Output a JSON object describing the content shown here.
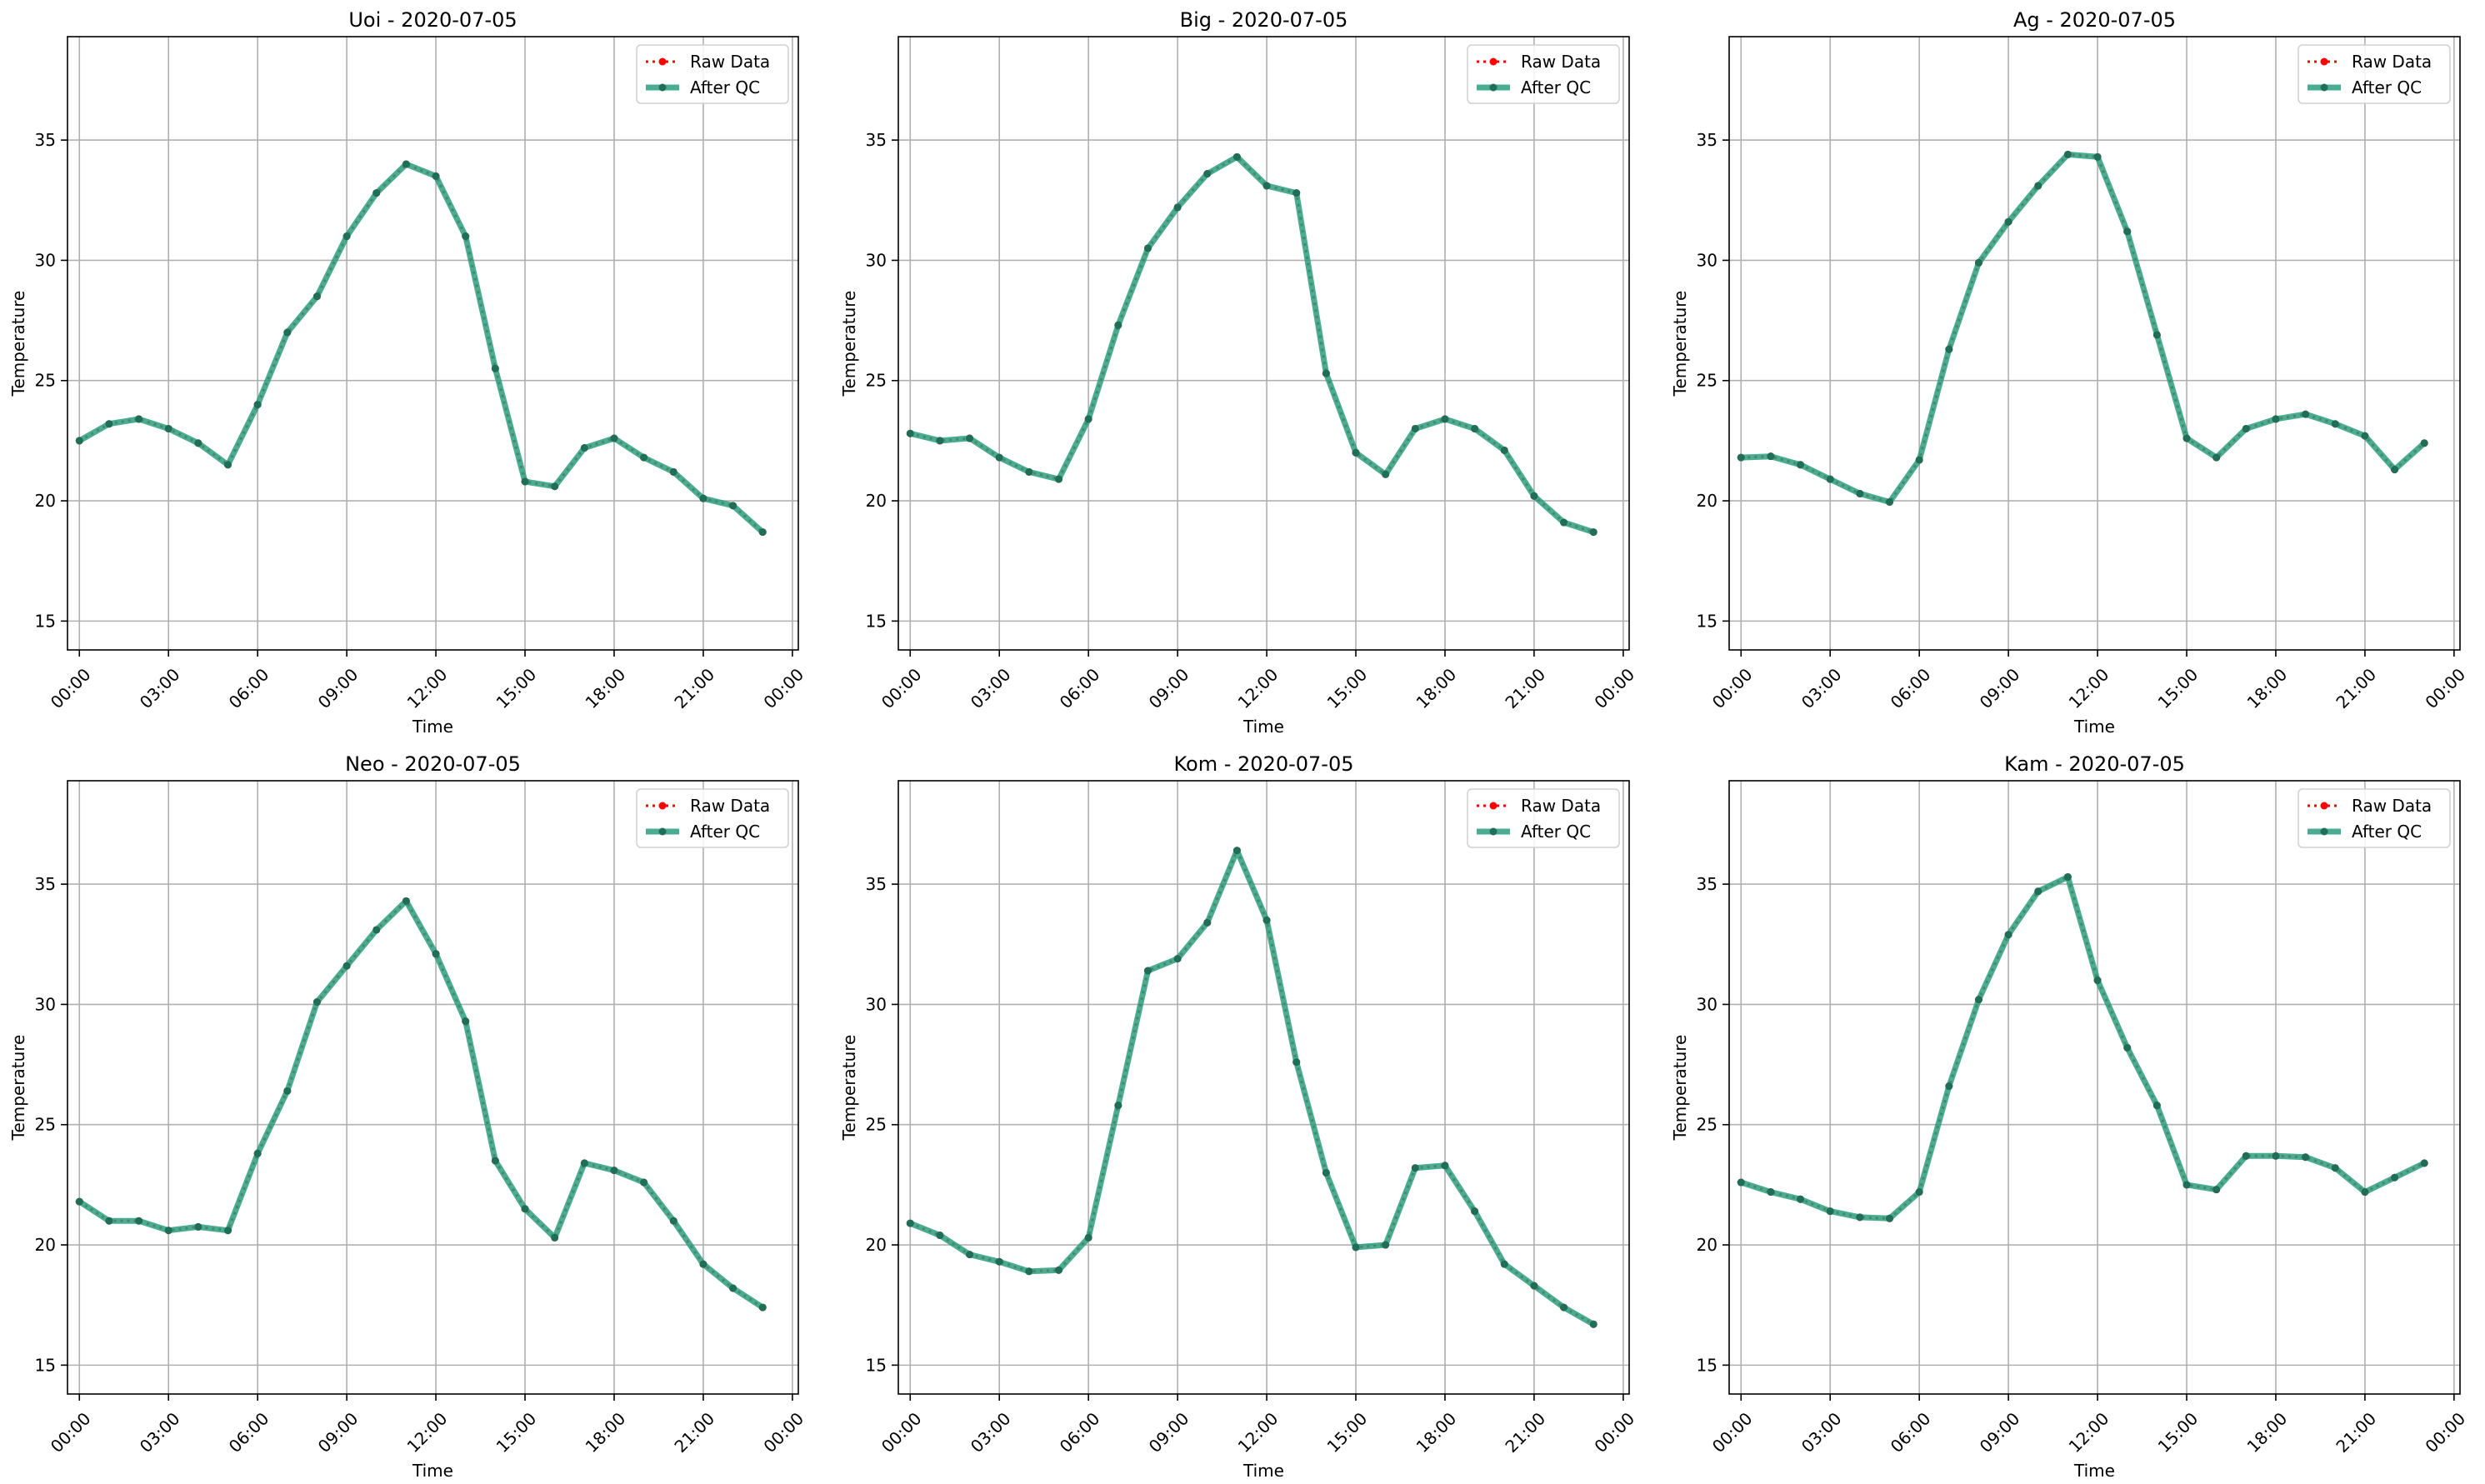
{
  "chart_data": [
    {
      "type": "line",
      "title": "Uoi - 2020-07-05",
      "xlabel": "Time",
      "ylabel": "Temperature",
      "x_ticks": [
        "00:00",
        "03:00",
        "06:00",
        "09:00",
        "12:00",
        "15:00",
        "18:00",
        "21:00",
        "00:00"
      ],
      "y_ticks": [
        "15",
        "20",
        "25",
        "30",
        "35"
      ],
      "ylim": [
        13.8,
        39.3
      ],
      "x_hours": [
        0,
        1,
        2,
        3,
        4,
        5,
        6,
        7,
        8,
        9,
        10,
        11,
        12,
        13,
        14,
        15,
        16,
        17,
        18,
        19,
        20,
        21,
        22,
        23
      ],
      "series": [
        {
          "name": "Raw Data",
          "values": [
            22.5,
            23.2,
            23.4,
            23.0,
            22.4,
            21.5,
            24.0,
            27.0,
            28.5,
            31.0,
            32.8,
            34.0,
            33.5,
            31.0,
            25.5,
            20.8,
            20.6,
            22.2,
            22.6,
            21.8,
            21.2,
            20.1,
            19.8,
            18.7
          ]
        },
        {
          "name": "After QC",
          "values": [
            22.5,
            23.2,
            23.4,
            23.0,
            22.4,
            21.5,
            24.0,
            27.0,
            28.5,
            31.0,
            32.8,
            34.0,
            33.5,
            31.0,
            25.5,
            20.8,
            20.6,
            22.2,
            22.6,
            21.8,
            21.2,
            20.1,
            19.8,
            18.7
          ]
        }
      ],
      "grid": true,
      "legend": "top-right"
    },
    {
      "type": "line",
      "title": "Big - 2020-07-05",
      "xlabel": "Time",
      "ylabel": "Temperature",
      "x_ticks": [
        "00:00",
        "03:00",
        "06:00",
        "09:00",
        "12:00",
        "15:00",
        "18:00",
        "21:00",
        "00:00"
      ],
      "y_ticks": [
        "15",
        "20",
        "25",
        "30",
        "35"
      ],
      "ylim": [
        13.8,
        39.3
      ],
      "x_hours": [
        0,
        1,
        2,
        3,
        4,
        5,
        6,
        7,
        8,
        9,
        10,
        11,
        12,
        13,
        14,
        15,
        16,
        17,
        18,
        19,
        20,
        21,
        22,
        23
      ],
      "series": [
        {
          "name": "Raw Data",
          "values": [
            22.8,
            22.5,
            22.6,
            21.8,
            21.2,
            20.9,
            23.4,
            27.3,
            30.5,
            32.2,
            33.6,
            34.3,
            33.1,
            32.8,
            25.3,
            22.0,
            21.1,
            23.0,
            23.4,
            23.0,
            22.1,
            20.2,
            19.1,
            18.7
          ]
        },
        {
          "name": "After QC",
          "values": [
            22.8,
            22.5,
            22.6,
            21.8,
            21.2,
            20.9,
            23.4,
            27.3,
            30.5,
            32.2,
            33.6,
            34.3,
            33.1,
            32.8,
            25.3,
            22.0,
            21.1,
            23.0,
            23.4,
            23.0,
            22.1,
            20.2,
            19.1,
            18.7
          ]
        }
      ],
      "grid": true,
      "legend": "top-right"
    },
    {
      "type": "line",
      "title": "Ag - 2020-07-05",
      "xlabel": "Time",
      "ylabel": "Temperature",
      "x_ticks": [
        "00:00",
        "03:00",
        "06:00",
        "09:00",
        "12:00",
        "15:00",
        "18:00",
        "21:00",
        "00:00"
      ],
      "y_ticks": [
        "15",
        "20",
        "25",
        "30",
        "35"
      ],
      "ylim": [
        13.8,
        39.3
      ],
      "x_hours": [
        0,
        1,
        2,
        3,
        4,
        5,
        6,
        7,
        8,
        9,
        10,
        11,
        12,
        13,
        14,
        15,
        16,
        17,
        18,
        19,
        20,
        21,
        22,
        23
      ],
      "series": [
        {
          "name": "Raw Data",
          "values": [
            21.8,
            21.85,
            21.5,
            20.9,
            20.3,
            19.95,
            21.7,
            26.3,
            29.9,
            31.6,
            33.1,
            34.4,
            34.3,
            31.2,
            26.9,
            22.6,
            21.8,
            23.0,
            23.4,
            23.6,
            23.2,
            22.7,
            21.3,
            22.4
          ]
        },
        {
          "name": "After QC",
          "values": [
            21.8,
            21.85,
            21.5,
            20.9,
            20.3,
            19.95,
            21.7,
            26.3,
            29.9,
            31.6,
            33.1,
            34.4,
            34.3,
            31.2,
            26.9,
            22.6,
            21.8,
            23.0,
            23.4,
            23.6,
            23.2,
            22.7,
            21.3,
            22.4
          ]
        }
      ],
      "grid": true,
      "legend": "top-right"
    },
    {
      "type": "line",
      "title": "Neo - 2020-07-05",
      "xlabel": "Time",
      "ylabel": "Temperature",
      "x_ticks": [
        "00:00",
        "03:00",
        "06:00",
        "09:00",
        "12:00",
        "15:00",
        "18:00",
        "21:00",
        "00:00"
      ],
      "y_ticks": [
        "15",
        "20",
        "25",
        "30",
        "35"
      ],
      "ylim": [
        13.8,
        39.3
      ],
      "x_hours": [
        0,
        1,
        2,
        3,
        4,
        5,
        6,
        7,
        8,
        9,
        10,
        11,
        12,
        13,
        14,
        15,
        16,
        17,
        18,
        19,
        20,
        21,
        22,
        23
      ],
      "series": [
        {
          "name": "Raw Data",
          "values": [
            21.8,
            21.0,
            21.0,
            20.6,
            20.75,
            20.6,
            23.8,
            26.4,
            30.1,
            31.6,
            33.1,
            34.3,
            32.1,
            29.3,
            23.5,
            21.5,
            20.3,
            23.4,
            23.1,
            22.6,
            21.0,
            19.2,
            18.2,
            17.4
          ]
        },
        {
          "name": "After QC",
          "values": [
            21.8,
            21.0,
            21.0,
            20.6,
            20.75,
            20.6,
            23.8,
            26.4,
            30.1,
            31.6,
            33.1,
            34.3,
            32.1,
            29.3,
            23.5,
            21.5,
            20.3,
            23.4,
            23.1,
            22.6,
            21.0,
            19.2,
            18.2,
            17.4
          ]
        }
      ],
      "grid": true,
      "legend": "top-right"
    },
    {
      "type": "line",
      "title": "Kom - 2020-07-05",
      "xlabel": "Time",
      "ylabel": "Temperature",
      "x_ticks": [
        "00:00",
        "03:00",
        "06:00",
        "09:00",
        "12:00",
        "15:00",
        "18:00",
        "21:00",
        "00:00"
      ],
      "y_ticks": [
        "15",
        "20",
        "25",
        "30",
        "35"
      ],
      "ylim": [
        13.8,
        39.3
      ],
      "x_hours": [
        0,
        1,
        2,
        3,
        4,
        5,
        6,
        7,
        8,
        9,
        10,
        11,
        12,
        13,
        14,
        15,
        16,
        17,
        18,
        19,
        20,
        21,
        22,
        23
      ],
      "series": [
        {
          "name": "Raw Data",
          "values": [
            20.9,
            20.4,
            19.6,
            19.3,
            18.9,
            18.95,
            20.3,
            25.8,
            31.4,
            31.9,
            33.4,
            36.4,
            33.5,
            27.6,
            23.0,
            19.9,
            20.0,
            23.2,
            23.3,
            21.4,
            19.2,
            18.3,
            17.4,
            16.7
          ]
        },
        {
          "name": "After QC",
          "values": [
            20.9,
            20.4,
            19.6,
            19.3,
            18.9,
            18.95,
            20.3,
            25.8,
            31.4,
            31.9,
            33.4,
            36.4,
            33.5,
            27.6,
            23.0,
            19.9,
            20.0,
            23.2,
            23.3,
            21.4,
            19.2,
            18.3,
            17.4,
            16.7
          ]
        }
      ],
      "grid": true,
      "legend": "top-right"
    },
    {
      "type": "line",
      "title": "Kam - 2020-07-05",
      "xlabel": "Time",
      "ylabel": "Temperature",
      "x_ticks": [
        "00:00",
        "03:00",
        "06:00",
        "09:00",
        "12:00",
        "15:00",
        "18:00",
        "21:00",
        "00:00"
      ],
      "y_ticks": [
        "15",
        "20",
        "25",
        "30",
        "35"
      ],
      "ylim": [
        13.8,
        39.3
      ],
      "x_hours": [
        0,
        1,
        2,
        3,
        4,
        5,
        6,
        7,
        8,
        9,
        10,
        11,
        12,
        13,
        14,
        15,
        16,
        17,
        18,
        19,
        20,
        21,
        22,
        23
      ],
      "series": [
        {
          "name": "Raw Data",
          "values": [
            22.6,
            22.2,
            21.9,
            21.4,
            21.15,
            21.1,
            22.2,
            26.6,
            30.2,
            32.9,
            34.7,
            35.3,
            31.0,
            28.2,
            25.8,
            22.5,
            22.3,
            23.7,
            23.7,
            23.65,
            23.2,
            22.2,
            22.8,
            23.4
          ]
        },
        {
          "name": "After QC",
          "values": [
            22.6,
            22.2,
            21.9,
            21.4,
            21.15,
            21.1,
            22.2,
            26.6,
            30.2,
            32.9,
            34.7,
            35.3,
            31.0,
            28.2,
            25.8,
            22.5,
            22.3,
            23.7,
            23.7,
            23.65,
            23.2,
            22.2,
            22.8,
            23.4
          ]
        }
      ],
      "grid": true,
      "legend": "top-right"
    }
  ],
  "colors": {
    "raw": "#ff0000",
    "qc": "#2a9d7c",
    "qc_marker": "#1f6e57",
    "grid": "#b0b0b0"
  }
}
